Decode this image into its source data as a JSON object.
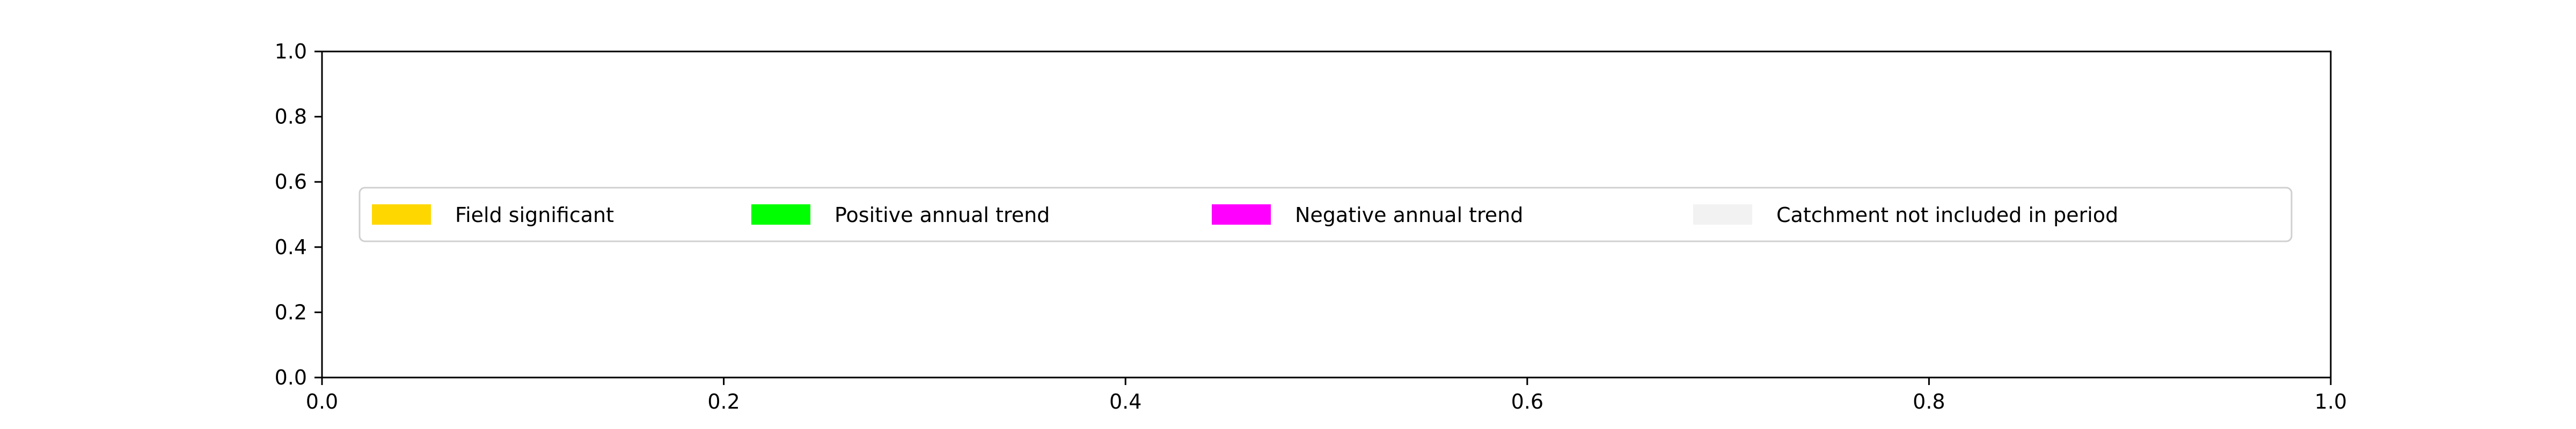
{
  "chart_data": {
    "type": "legend-only",
    "title": "",
    "xlabel": "",
    "ylabel": "",
    "xlim": [
      0.0,
      1.0
    ],
    "ylim": [
      0.0,
      1.0
    ],
    "x_ticks": [
      "0.0",
      "0.2",
      "0.4",
      "0.6",
      "0.8",
      "1.0"
    ],
    "y_ticks": [
      "0.0",
      "0.2",
      "0.4",
      "0.6",
      "0.8",
      "1.0"
    ],
    "grid": false,
    "series": [],
    "legend": {
      "placement": "center-left",
      "entries": [
        {
          "label": "Field significant",
          "color": "#FFD700"
        },
        {
          "label": "Positive annual trend",
          "color": "#00FF00"
        },
        {
          "label": "Negative annual trend",
          "color": "#FF00FF"
        },
        {
          "label": "Catchment not included in period",
          "color": "#F2F2F2"
        }
      ]
    }
  }
}
